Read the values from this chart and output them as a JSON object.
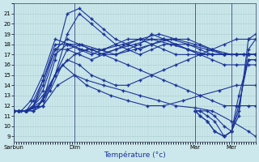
{
  "xlabel": "Température (°c)",
  "bg_color": "#cce8ec",
  "grid_color": "#aacccc",
  "line_color": "#1a3399",
  "ylim": [
    8.5,
    22.0
  ],
  "yticks": [
    9,
    10,
    11,
    12,
    13,
    14,
    15,
    16,
    17,
    18,
    19,
    20,
    21
  ],
  "xlim": [
    0,
    100
  ],
  "x_tick_labels": [
    "Sarbun",
    "Dim",
    "Mar",
    "Mer"
  ],
  "x_tick_positions": [
    0,
    25,
    75,
    90
  ],
  "series": [
    {
      "x": [
        0,
        2,
        5,
        8,
        12,
        17,
        22,
        27,
        32,
        37,
        42,
        47,
        52,
        57,
        62,
        67,
        72,
        77,
        82,
        87,
        92,
        97,
        100
      ],
      "y": [
        11.5,
        11.5,
        11.5,
        11.5,
        12.5,
        16.5,
        21.0,
        21.5,
        20.5,
        19.5,
        18.5,
        18.0,
        17.5,
        18.0,
        18.5,
        18.5,
        18.5,
        18.0,
        17.5,
        17.0,
        17.0,
        17.0,
        17.0
      ]
    },
    {
      "x": [
        0,
        2,
        5,
        8,
        12,
        17,
        22,
        27,
        32,
        37,
        42,
        47,
        52,
        57,
        62,
        67,
        72,
        77,
        82,
        87,
        92,
        97,
        100
      ],
      "y": [
        11.5,
        11.5,
        11.5,
        11.5,
        12.0,
        15.0,
        19.0,
        21.0,
        20.0,
        19.0,
        18.0,
        17.5,
        17.0,
        17.5,
        18.0,
        18.0,
        18.0,
        17.5,
        17.0,
        17.0,
        17.0,
        17.0,
        17.0
      ]
    },
    {
      "x": [
        0,
        2,
        5,
        8,
        12,
        17,
        22,
        27,
        32,
        37,
        42,
        47,
        52,
        57,
        62,
        67,
        72,
        77,
        82,
        87,
        92,
        97,
        100
      ],
      "y": [
        11.5,
        11.5,
        11.5,
        12.0,
        14.0,
        17.5,
        18.5,
        18.0,
        17.5,
        17.0,
        16.5,
        16.0,
        15.5,
        15.0,
        14.5,
        14.0,
        13.5,
        13.0,
        12.5,
        12.0,
        12.0,
        12.0,
        12.0
      ]
    },
    {
      "x": [
        0,
        2,
        5,
        8,
        12,
        17,
        22,
        27,
        32,
        37,
        42,
        47,
        52,
        57,
        62,
        67,
        72,
        77,
        82,
        87,
        92,
        97,
        100
      ],
      "y": [
        11.5,
        11.5,
        11.5,
        12.0,
        13.0,
        15.0,
        16.5,
        16.0,
        15.0,
        14.5,
        14.0,
        14.0,
        14.5,
        15.0,
        15.5,
        16.0,
        16.5,
        17.0,
        17.5,
        18.0,
        18.5,
        18.5,
        18.5
      ]
    },
    {
      "x": [
        0,
        2,
        5,
        8,
        12,
        17,
        22,
        27,
        32,
        37,
        42,
        47,
        52,
        57,
        62,
        67,
        72,
        77,
        82,
        87,
        92,
        97,
        100
      ],
      "y": [
        11.5,
        11.5,
        11.5,
        12.5,
        14.5,
        17.5,
        17.5,
        17.0,
        16.5,
        17.0,
        17.5,
        18.0,
        18.5,
        18.5,
        18.5,
        18.0,
        17.5,
        17.0,
        17.0,
        17.0,
        17.0,
        17.0,
        17.0
      ]
    },
    {
      "x": [
        0,
        2,
        5,
        8,
        12,
        17,
        22,
        27,
        32,
        37,
        42,
        47,
        52,
        57,
        62,
        67,
        72,
        77,
        82,
        87,
        92,
        97,
        100
      ],
      "y": [
        11.5,
        11.5,
        11.5,
        12.0,
        13.5,
        17.0,
        18.0,
        17.5,
        17.0,
        17.5,
        18.0,
        18.5,
        18.5,
        18.0,
        17.5,
        17.0,
        17.0,
        17.0,
        17.0,
        17.0,
        17.0,
        17.0,
        17.0
      ]
    },
    {
      "x": [
        0,
        2,
        5,
        8,
        12,
        17,
        22,
        27,
        32,
        37,
        42,
        47,
        52,
        57,
        62,
        67,
        72,
        77,
        82,
        87,
        92,
        97,
        100
      ],
      "y": [
        11.5,
        11.5,
        11.5,
        12.0,
        14.5,
        18.0,
        18.0,
        18.0,
        17.5,
        17.0,
        17.0,
        17.5,
        18.0,
        19.0,
        18.5,
        18.0,
        17.5,
        17.0,
        16.5,
        16.0,
        16.0,
        16.0,
        16.0
      ]
    },
    {
      "x": [
        0,
        5,
        10,
        15,
        20,
        25,
        30,
        35,
        40,
        47,
        55,
        62,
        70,
        77,
        85,
        92,
        100
      ],
      "y": [
        11.5,
        11.5,
        12.0,
        13.5,
        16.0,
        15.0,
        14.0,
        13.5,
        13.0,
        12.5,
        12.0,
        12.0,
        12.5,
        13.0,
        13.5,
        14.0,
        14.0
      ]
    },
    {
      "x": [
        0,
        5,
        10,
        15,
        22,
        28,
        35,
        42,
        50,
        57,
        65,
        72,
        80,
        87,
        95,
        100
      ],
      "y": [
        11.5,
        11.5,
        12.0,
        14.0,
        17.5,
        18.0,
        17.5,
        17.0,
        17.5,
        18.0,
        18.5,
        18.0,
        17.5,
        17.0,
        17.0,
        17.0
      ]
    },
    {
      "x": [
        0,
        3,
        7,
        12,
        17,
        23,
        28,
        35,
        42,
        50,
        57,
        65,
        72,
        80,
        87,
        95,
        100
      ],
      "y": [
        11.5,
        11.5,
        12.5,
        15.0,
        18.5,
        18.0,
        17.5,
        17.0,
        17.5,
        18.0,
        18.5,
        18.0,
        17.5,
        17.0,
        17.0,
        17.0,
        17.0
      ]
    },
    {
      "x": [
        0,
        5,
        12,
        18,
        25,
        30,
        37,
        45,
        52,
        60,
        67,
        75,
        82,
        90,
        97,
        100
      ],
      "y": [
        11.5,
        11.5,
        12.0,
        14.0,
        15.0,
        14.5,
        14.0,
        13.5,
        13.0,
        12.5,
        12.0,
        11.8,
        11.5,
        10.5,
        9.5,
        9.0
      ]
    },
    {
      "x": [
        0,
        5,
        12,
        18,
        25,
        30,
        37,
        45,
        52,
        60,
        67,
        75,
        82,
        90,
        97,
        100
      ],
      "y": [
        11.5,
        11.5,
        12.5,
        15.5,
        17.0,
        17.5,
        17.5,
        18.0,
        18.5,
        19.0,
        18.5,
        18.0,
        17.5,
        17.0,
        17.0,
        17.0
      ]
    },
    {
      "x": [
        75,
        77,
        80,
        83,
        87,
        90,
        93,
        97,
        100
      ],
      "y": [
        11.5,
        11.0,
        10.5,
        9.5,
        9.0,
        9.5,
        11.0,
        18.5,
        19.0
      ]
    },
    {
      "x": [
        75,
        77,
        80,
        83,
        87,
        90,
        93,
        97,
        100
      ],
      "y": [
        11.5,
        11.0,
        10.5,
        9.5,
        9.0,
        9.5,
        11.5,
        17.5,
        18.5
      ]
    },
    {
      "x": [
        75,
        77,
        80,
        83,
        87,
        90,
        93,
        97,
        100
      ],
      "y": [
        11.5,
        11.5,
        11.0,
        10.5,
        9.0,
        9.5,
        12.0,
        16.5,
        16.5
      ]
    },
    {
      "x": [
        75,
        77,
        80,
        83,
        87,
        90,
        93,
        97,
        100
      ],
      "y": [
        11.5,
        11.5,
        11.5,
        11.0,
        10.0,
        9.5,
        13.0,
        16.5,
        16.5
      ]
    }
  ]
}
